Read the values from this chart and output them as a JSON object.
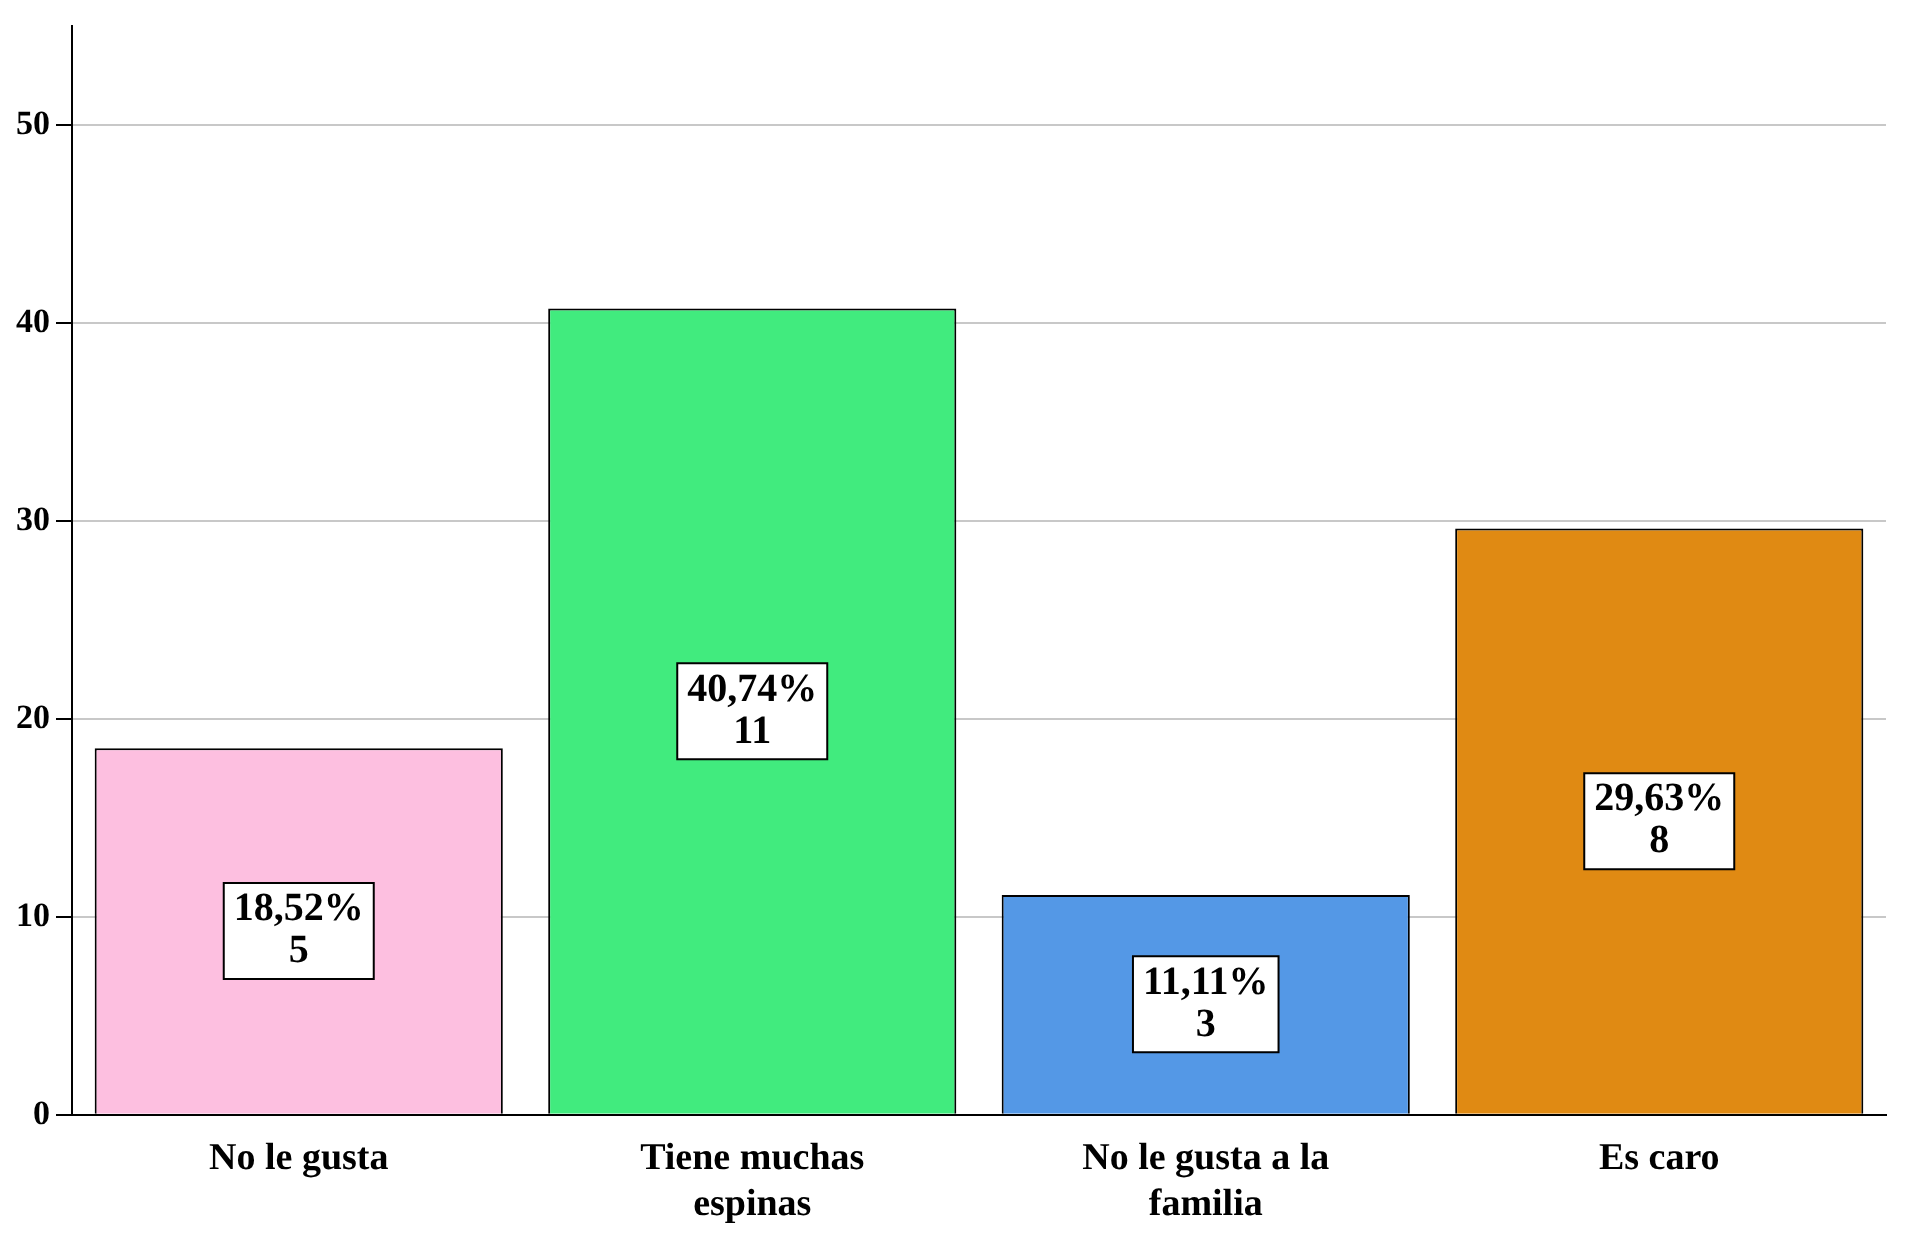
{
  "chart_data": {
    "type": "bar",
    "categories": [
      "No le gusta",
      "Tiene muchas espinas",
      "No le gusta a la familia",
      "Es caro"
    ],
    "values": [
      18.52,
      40.74,
      11.11,
      29.63
    ],
    "colors": [
      "#fdbfe0",
      "#41eb7e",
      "#5498e6",
      "#e08a13"
    ],
    "value_labels": [
      "18,52%\n5",
      "40,74%\n11",
      "11,11%\n3",
      "29,63%\n8"
    ],
    "ylim": [
      0,
      55
    ],
    "yticks": [
      0,
      10,
      20,
      30,
      40,
      50
    ],
    "grid": "y",
    "legend": false
  }
}
